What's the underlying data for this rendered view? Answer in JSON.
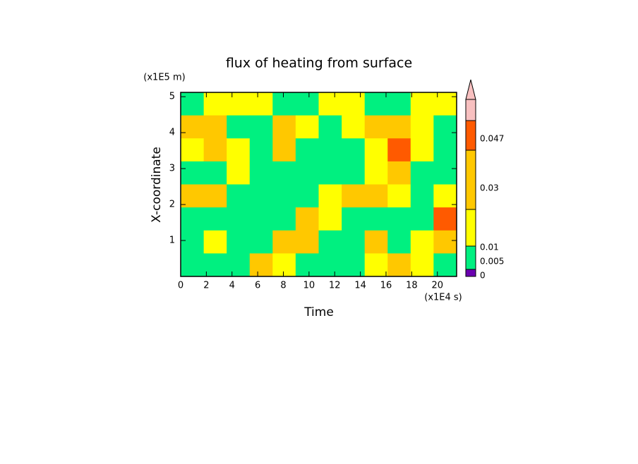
{
  "chart_data": {
    "type": "contour",
    "title": "flux of heating from surface",
    "xlabel": "Time",
    "ylabel": "X-coordinate",
    "xunit": "(x1E4 s)",
    "yunit": "(x1E5 m)",
    "x": [
      0.9,
      2.69,
      4.48,
      6.27,
      8.06,
      9.85,
      11.65,
      13.44,
      15.23,
      17.02,
      18.81,
      20.6
    ],
    "y": [
      4.8,
      4.16,
      3.52,
      2.88,
      2.24,
      1.6,
      0.96,
      0.32
    ],
    "z": [
      [
        0.004,
        0.008,
        0.006,
        0.008,
        0.004,
        0.004,
        0.008,
        0.008,
        0.004,
        0.004,
        0.008,
        0.008
      ],
      [
        0.015,
        0.012,
        0.004,
        0.004,
        0.012,
        0.008,
        0.004,
        0.008,
        0.012,
        0.012,
        0.008,
        0.004
      ],
      [
        0.008,
        0.012,
        0.008,
        0.004,
        0.012,
        0.004,
        0.004,
        0.004,
        0.008,
        0.035,
        0.008,
        0.004
      ],
      [
        0.004,
        0.004,
        0.008,
        0.004,
        0.004,
        0.004,
        0.004,
        0.004,
        0.008,
        0.012,
        0.004,
        0.004
      ],
      [
        0.012,
        0.012,
        0.004,
        0.004,
        0.004,
        0.004,
        0.008,
        0.012,
        0.012,
        0.008,
        0.004,
        0.008
      ],
      [
        0.004,
        0.004,
        0.004,
        0.004,
        0.004,
        0.015,
        0.008,
        0.004,
        0.004,
        0.004,
        0.004,
        0.035
      ],
      [
        0.004,
        0.008,
        0.004,
        0.004,
        0.012,
        0.012,
        0.004,
        0.004,
        0.012,
        0.004,
        0.008,
        0.012
      ],
      [
        0.004,
        0.004,
        0.004,
        0.015,
        0.008,
        0.004,
        0.004,
        0.004,
        0.008,
        0.012,
        0.008,
        0.004
      ]
    ],
    "xlim": [
      0,
      21.5
    ],
    "ylim": [
      0,
      5.12
    ],
    "xticks": [
      0,
      2,
      4,
      6,
      8,
      10,
      12,
      14,
      16,
      18,
      20
    ],
    "yticks": [
      1,
      2,
      3,
      4,
      5
    ],
    "colorbar": {
      "levels": [
        0,
        0.005,
        0.01,
        0.03,
        0.047
      ],
      "colors": [
        "#6a00b0",
        "#00f080",
        "#ffff00",
        "#ffc800",
        "#ff5a00",
        "#f8c0c0"
      ]
    }
  }
}
